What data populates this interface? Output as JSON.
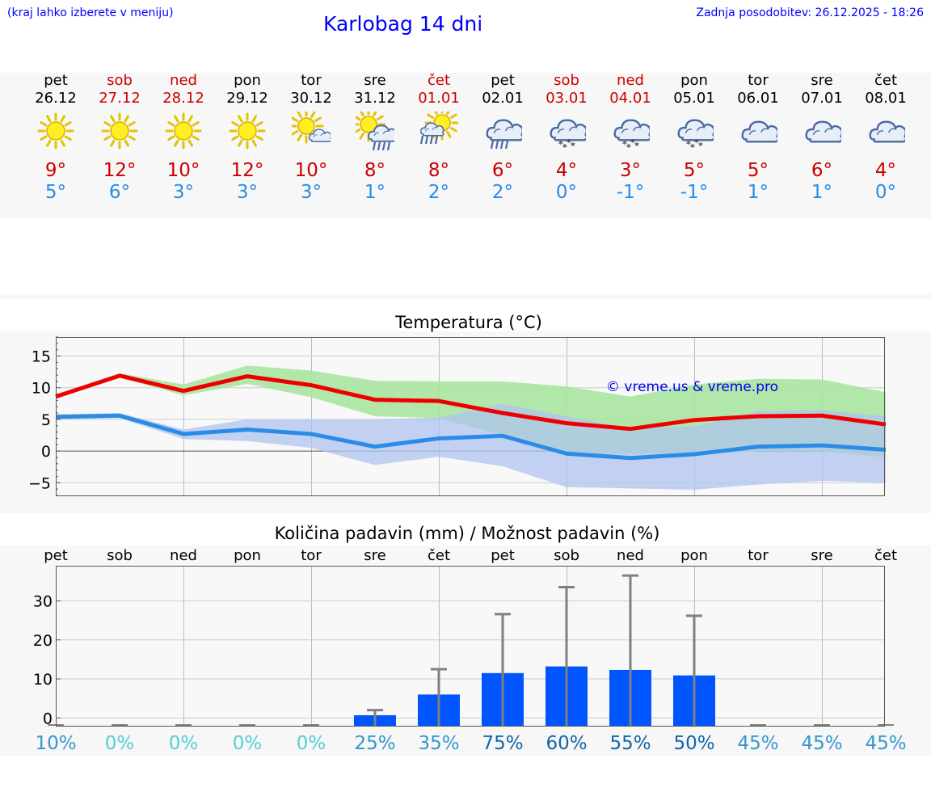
{
  "header": {
    "hint": "(kraj lahko izberete v meniju)",
    "title": "Karlobag 14 dni",
    "updated": "Zadnja posodobitev: 26.12.2025 - 18:26"
  },
  "colors": {
    "weekend": "#cc0000",
    "tmax": "#cc0000",
    "tmin": "#2a8ce6",
    "bar": "#0055ff"
  },
  "days": [
    {
      "name": "pet",
      "date": "26.12",
      "weekend": false,
      "icon": "sun-icon",
      "tmax": "9°",
      "tmin": "5°"
    },
    {
      "name": "sob",
      "date": "27.12",
      "weekend": true,
      "icon": "sun-icon",
      "tmax": "12°",
      "tmin": "6°"
    },
    {
      "name": "ned",
      "date": "28.12",
      "weekend": true,
      "icon": "sun-icon",
      "tmax": "10°",
      "tmin": "3°"
    },
    {
      "name": "pon",
      "date": "29.12",
      "weekend": false,
      "icon": "sun-icon",
      "tmax": "12°",
      "tmin": "3°"
    },
    {
      "name": "tor",
      "date": "30.12",
      "weekend": false,
      "icon": "sun-cloud-icon",
      "tmax": "10°",
      "tmin": "3°"
    },
    {
      "name": "sre",
      "date": "31.12",
      "weekend": false,
      "icon": "sun-cloud-rain-icon",
      "tmax": "8°",
      "tmin": "1°"
    },
    {
      "name": "čet",
      "date": "01.01",
      "weekend": true,
      "icon": "sun-rain-icon",
      "tmax": "8°",
      "tmin": "2°"
    },
    {
      "name": "pet",
      "date": "02.01",
      "weekend": false,
      "icon": "cloud-rain-icon",
      "tmax": "6°",
      "tmin": "2°"
    },
    {
      "name": "sob",
      "date": "03.01",
      "weekend": true,
      "icon": "cloud-snow-icon",
      "tmax": "4°",
      "tmin": "0°"
    },
    {
      "name": "ned",
      "date": "04.01",
      "weekend": true,
      "icon": "cloud-snow-icon",
      "tmax": "3°",
      "tmin": "-1°"
    },
    {
      "name": "pon",
      "date": "05.01",
      "weekend": false,
      "icon": "cloud-snow-icon",
      "tmax": "5°",
      "tmin": "-1°"
    },
    {
      "name": "tor",
      "date": "06.01",
      "weekend": false,
      "icon": "cloud-icon",
      "tmax": "5°",
      "tmin": "1°"
    },
    {
      "name": "sre",
      "date": "07.01",
      "weekend": false,
      "icon": "cloud-icon",
      "tmax": "6°",
      "tmin": "1°"
    },
    {
      "name": "čet",
      "date": "08.01",
      "weekend": false,
      "icon": "cloud-icon",
      "tmax": "4°",
      "tmin": "0°"
    }
  ],
  "chart_data": [
    {
      "type": "line",
      "title": "Temperatura (°C)",
      "watermark": "© vreme.us & vreme.pro",
      "ylim": [
        -7,
        18
      ],
      "yticks": [
        "−5",
        "0",
        "5",
        "10",
        "15"
      ],
      "ytick_values": [
        -5,
        0,
        5,
        10,
        15
      ],
      "grid": true,
      "series": [
        {
          "name": "max",
          "color": "#ee0000",
          "values": [
            8.6,
            11.9,
            9.5,
            11.8,
            10.4,
            8.1,
            7.9,
            6.0,
            4.4,
            3.5,
            4.9,
            5.5,
            5.6,
            4.2
          ],
          "band_low": [
            8.4,
            11.6,
            8.8,
            10.6,
            8.5,
            5.5,
            5.2,
            2.5,
            -0.5,
            -0.5,
            -0.5,
            0.0,
            0.0,
            -1.0
          ],
          "band_high": [
            8.8,
            12.3,
            10.5,
            13.5,
            12.7,
            11.1,
            11.0,
            11.0,
            10.2,
            8.6,
            10.5,
            11.4,
            11.3,
            9.3
          ],
          "band_color": "#a8e6a0"
        },
        {
          "name": "min",
          "color": "#2a8ce6",
          "values": [
            5.4,
            5.6,
            2.7,
            3.4,
            2.7,
            0.7,
            2.0,
            2.4,
            -0.4,
            -1.1,
            -0.5,
            0.7,
            0.9,
            0.2
          ],
          "band_low": [
            5.0,
            5.2,
            1.9,
            1.6,
            0.5,
            -2.2,
            -0.9,
            -2.4,
            -5.7,
            -5.9,
            -6.1,
            -5.3,
            -4.7,
            -5.0
          ],
          "band_high": [
            5.8,
            6.0,
            3.4,
            5.0,
            5.0,
            5.0,
            5.3,
            7.5,
            5.5,
            3.6,
            3.9,
            6.3,
            6.5,
            5.5
          ],
          "band_color": "#b0c4f0"
        }
      ]
    },
    {
      "type": "bar",
      "title": "Količina padavin (mm) / Možnost padavin (%)",
      "categories": [
        "pet",
        "sob",
        "ned",
        "pon",
        "tor",
        "sre",
        "čet",
        "pet",
        "sob",
        "ned",
        "pon",
        "tor",
        "sre",
        "čet"
      ],
      "ylim": [
        -2,
        39
      ],
      "yticks": [
        "0",
        "10",
        "20",
        "30"
      ],
      "ytick_values": [
        0,
        10,
        20,
        30
      ],
      "values": [
        0,
        0,
        0,
        0,
        0,
        0.7,
        6.0,
        11.5,
        13.2,
        12.3,
        10.9,
        0,
        0,
        0
      ],
      "error_high": [
        0,
        0,
        0,
        0,
        0,
        2.0,
        12.5,
        26.6,
        33.5,
        36.5,
        26.2,
        0,
        0,
        0
      ],
      "probability": [
        "10%",
        "0%",
        "0%",
        "0%",
        "0%",
        "25%",
        "35%",
        "75%",
        "60%",
        "55%",
        "50%",
        "45%",
        "45%",
        "45%"
      ],
      "probability_colors": [
        "#3399cc",
        "#55ccdd",
        "#55ccdd",
        "#55ccdd",
        "#55ccdd",
        "#3399cc",
        "#3399cc",
        "#1166aa",
        "#1166aa",
        "#1166aa",
        "#1166aa",
        "#3399cc",
        "#3399cc",
        "#3399cc"
      ]
    }
  ]
}
